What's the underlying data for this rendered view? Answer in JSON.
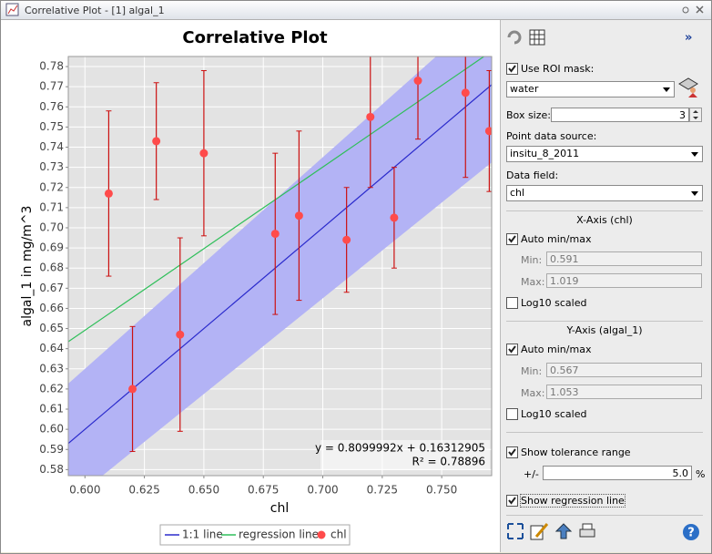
{
  "window": {
    "title": "Correlative Plot - [1] algal_1"
  },
  "chart_data": {
    "type": "scatter",
    "title": "Correlative Plot",
    "x_label": "chl",
    "y_label": "algal_1 in mg/m^3",
    "xlim": [
      0.593,
      0.771
    ],
    "ylim": [
      0.577,
      0.785
    ],
    "xticks": [
      {
        "value": 0.6,
        "label": "0.600"
      },
      {
        "value": 0.625,
        "label": "0.625"
      },
      {
        "value": 0.65,
        "label": "0.650"
      },
      {
        "value": 0.675,
        "label": "0.675"
      },
      {
        "value": 0.7,
        "label": "0.700"
      },
      {
        "value": 0.725,
        "label": "0.725"
      },
      {
        "value": 0.75,
        "label": "0.750"
      }
    ],
    "yticks": [
      0.58,
      0.59,
      {
        "value": 0.6,
        "label": "0.60"
      },
      0.61,
      0.62,
      0.63,
      0.64,
      0.65,
      0.66,
      0.67,
      0.68,
      0.69,
      {
        "value": 0.7,
        "label": "0.70"
      },
      0.71,
      0.72,
      0.73,
      0.74,
      0.75,
      0.76,
      0.77,
      0.78
    ],
    "grid": true,
    "series": [
      {
        "name": "chl",
        "color": "#ff4b4b",
        "x": [
          0.61,
          0.62,
          0.63,
          0.64,
          0.65,
          0.68,
          0.69,
          0.71,
          0.72,
          0.73,
          0.74,
          0.76,
          0.77
        ],
        "values": [
          0.717,
          0.62,
          0.743,
          0.647,
          0.737,
          0.697,
          0.706,
          0.694,
          0.755,
          0.705,
          0.773,
          0.767,
          0.748
        ],
        "errors": [
          0.041,
          0.031,
          0.029,
          0.048,
          0.041,
          0.04,
          0.042,
          0.026,
          0.035,
          0.025,
          0.029,
          0.042,
          0.03
        ]
      }
    ],
    "lines": [
      {
        "name": "1:1 line",
        "color": "#2a2acc"
      },
      {
        "name": "regression line",
        "color": "#2fbf5a"
      }
    ],
    "band_color": "#b3b3f5",
    "regression_equation": "y = 0.8099992x + 0.16312905",
    "r_squared": "R² = 0.78896"
  },
  "panel": {
    "use_roi_mask": {
      "label": "Use ROI mask:",
      "checked": true
    },
    "roi_mask": "water",
    "box_size": {
      "label": "Box size:",
      "value": "3"
    },
    "point_data_source": {
      "label": "Point data source:",
      "value": "insitu_8_2011"
    },
    "data_field": {
      "label": "Data field:",
      "value": "chl"
    },
    "x_axis": {
      "title": "X-Axis (chl)",
      "auto": {
        "label": "Auto min/max",
        "checked": true
      },
      "min_label": "Min:",
      "min": "0.591",
      "max_label": "Max:",
      "max": "1.019",
      "log": {
        "label": "Log10 scaled",
        "checked": false
      }
    },
    "y_axis": {
      "title": "Y-Axis (algal_1)",
      "auto": {
        "label": "Auto min/max",
        "checked": true
      },
      "min_label": "Min:",
      "min": "0.567",
      "max_label": "Max:",
      "max": "1.053",
      "log": {
        "label": "Log10 scaled",
        "checked": false
      }
    },
    "tolerance": {
      "label": "Show tolerance range",
      "checked": true,
      "sign": "+/-",
      "value": "5.0",
      "unit": "%"
    },
    "regression": {
      "label": "Show regression line",
      "checked": true
    }
  }
}
